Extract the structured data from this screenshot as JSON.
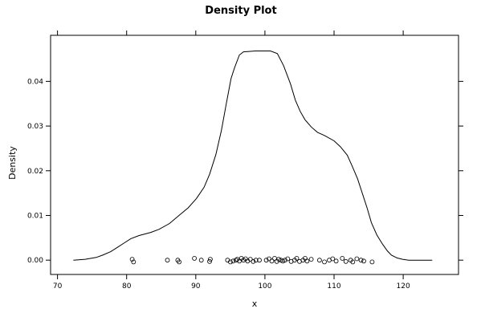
{
  "chart_data": {
    "type": "line",
    "title": "Density Plot",
    "xlabel": "x",
    "ylabel": "Density",
    "xlim": [
      69,
      128
    ],
    "ylim": [
      -0.0032,
      0.0503
    ],
    "x_ticks": [
      70,
      80,
      90,
      100,
      110,
      120
    ],
    "x_tick_labels": [
      "70",
      "80",
      "90",
      "100",
      "110",
      "120"
    ],
    "y_ticks": [
      0.0,
      0.01,
      0.02,
      0.03,
      0.04
    ],
    "y_tick_labels": [
      "0.00",
      "0.01",
      "0.02",
      "0.03",
      "0.04"
    ],
    "grid": false,
    "legend": "none",
    "series": [
      {
        "type": "line",
        "x": [
          72.3,
          74.0,
          75.6,
          76.5,
          77.7,
          78.6,
          79.6,
          80.6,
          81.8,
          83.5,
          84.7,
          86.2,
          87.5,
          88.9,
          90.1,
          91.2,
          92.0,
          92.9,
          93.7,
          94.4,
          95.1,
          95.6,
          96.3,
          96.9,
          97.7,
          98.6,
          99.6,
          100.8,
          101.8,
          102.7,
          103.7,
          104.4,
          105.1,
          105.8,
          106.7,
          107.6,
          108.6,
          110.0,
          110.9,
          111.9,
          112.6,
          113.4,
          114.1,
          114.8,
          115.4,
          116.2,
          117.0,
          117.7,
          118.3,
          119.1,
          119.9,
          120.8,
          122.1,
          123.2,
          124.2
        ],
        "y": [
          0.0,
          0.0002,
          0.0006,
          0.0011,
          0.0019,
          0.0028,
          0.0038,
          0.0048,
          0.0055,
          0.0062,
          0.0069,
          0.0082,
          0.0099,
          0.0117,
          0.0138,
          0.0163,
          0.0192,
          0.0236,
          0.029,
          0.0349,
          0.0406,
          0.043,
          0.0459,
          0.0466,
          0.0467,
          0.0468,
          0.0468,
          0.0468,
          0.0462,
          0.0435,
          0.0394,
          0.0358,
          0.0333,
          0.0314,
          0.0298,
          0.0286,
          0.0279,
          0.0267,
          0.0254,
          0.0235,
          0.0211,
          0.0182,
          0.0149,
          0.0116,
          0.0084,
          0.0056,
          0.0036,
          0.0021,
          0.0011,
          0.0005,
          0.0002,
          0.0,
          0.0,
          0.0,
          0.0
        ]
      },
      {
        "type": "scatter",
        "x": [
          80.8,
          81.0,
          85.9,
          87.4,
          87.6,
          89.8,
          90.8,
          92.0,
          92.1,
          94.6,
          95.0,
          95.4,
          95.8,
          96.0,
          96.3,
          96.6,
          96.9,
          97.2,
          97.5,
          97.9,
          98.3,
          98.7,
          99.2,
          100.2,
          100.6,
          101.0,
          101.4,
          101.7,
          102.0,
          102.3,
          102.6,
          102.9,
          103.3,
          103.8,
          104.3,
          104.6,
          105.0,
          105.5,
          105.8,
          106.1,
          106.7,
          107.9,
          108.6,
          109.3,
          109.8,
          110.3,
          111.2,
          111.7,
          112.4,
          112.7,
          113.3,
          113.9,
          114.3,
          115.5
        ],
        "y": [
          0.0002,
          -0.0004,
          0.0,
          0.0,
          -0.0004,
          0.0004,
          0.0,
          -0.0003,
          0.0002,
          0.0,
          -0.0004,
          -0.0002,
          0.0,
          0.0002,
          -0.0002,
          0.0004,
          0.0,
          0.0003,
          -0.0002,
          0.0002,
          -0.0003,
          0.0,
          0.0,
          0.0,
          0.0003,
          -0.0002,
          0.0004,
          -0.0003,
          0.0002,
          0.0,
          -0.0002,
          0.0,
          0.0003,
          -0.0003,
          0.0,
          0.0004,
          -0.0003,
          0.0,
          0.0004,
          -0.0002,
          0.0002,
          0.0,
          -0.0004,
          0.0,
          0.0003,
          -0.0002,
          0.0004,
          -0.0003,
          0.0,
          -0.0004,
          0.0003,
          0.0,
          -0.0002,
          -0.0004
        ]
      }
    ]
  }
}
